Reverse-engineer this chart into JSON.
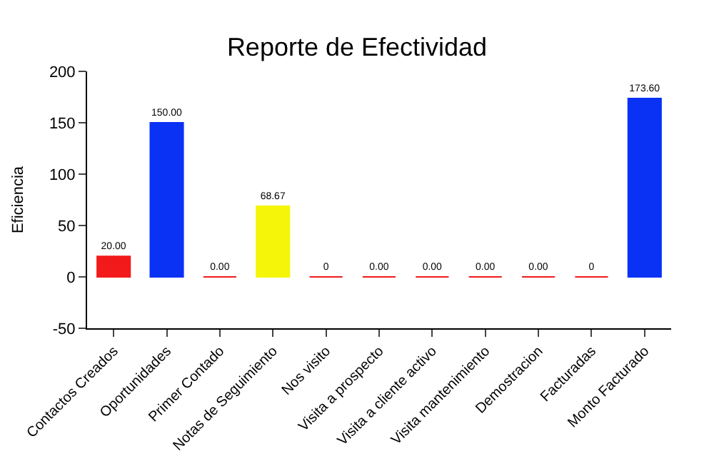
{
  "chart_data": {
    "type": "bar",
    "title": "Reporte de Efectividad",
    "ylabel": "Eficiencia",
    "categories": [
      "Contactos Creados",
      "Oportunidades",
      "Primer Contado",
      "Notas de Seguimiento",
      "Nos visito",
      "Visita a prospecto",
      "Visita a cliente activo",
      "Visita mantenimiento",
      "Demostracion",
      "Facturadas",
      "Monto Facturado"
    ],
    "values": [
      20,
      150,
      0,
      68.67,
      0,
      0,
      0,
      0,
      0,
      0,
      173.6
    ],
    "value_labels": [
      "20.00",
      "150.00",
      "0.00",
      "68.67",
      "0",
      "0.00",
      "0.00",
      "0.00",
      "0.00",
      "0",
      "173.60"
    ],
    "colors": [
      "#f21a1a",
      "#0a32f5",
      "#f21a1a",
      "#f5f50a",
      "#f21a1a",
      "#f21a1a",
      "#f21a1a",
      "#f21a1a",
      "#f21a1a",
      "#f21a1a",
      "#0a32f5"
    ],
    "ylim": [
      -50,
      200
    ],
    "yticks": [
      -50,
      0,
      50,
      100,
      150,
      200
    ],
    "legend": false
  }
}
